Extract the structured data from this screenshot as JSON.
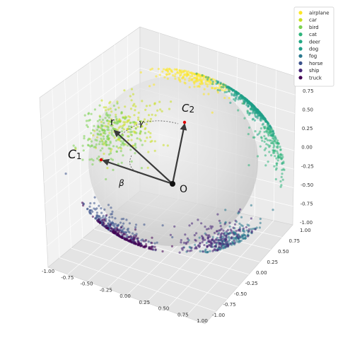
{
  "chart_data": {
    "type": "scatter",
    "projection": "3d",
    "grid": true,
    "legend_position": "top-right",
    "x_ticks": [
      "-1.00",
      "-0.75",
      "-0.50",
      "-0.25",
      "0.00",
      "0.25",
      "0.50",
      "0.75",
      "1.00"
    ],
    "y_ticks": [
      "1.00",
      "0.75",
      "0.50",
      "0.25",
      "0.00",
      "-0.25",
      "-0.50",
      "-0.75",
      "-1.00"
    ],
    "z_ticks": [
      "0.75",
      "0.50",
      "0.25",
      "0.00",
      "-0.25",
      "-0.50",
      "-0.75",
      "-1.00"
    ],
    "xlim": [
      -1,
      1
    ],
    "ylim": [
      -1,
      1
    ],
    "zlim": [
      -1,
      1
    ],
    "series": [
      {
        "name": "airplane",
        "color": "#fde725",
        "center": [
          -0.3,
          0.65,
          0.75
        ],
        "count": 200
      },
      {
        "name": "car",
        "color": "#c8e020",
        "center": [
          -0.7,
          0.3,
          -0.05
        ],
        "count": 160
      },
      {
        "name": "bird",
        "color": "#7ad151",
        "center": [
          -0.75,
          0.15,
          -0.15
        ],
        "count": 200
      },
      {
        "name": "cat",
        "color": "#2fb47c",
        "center": [
          0.85,
          0.6,
          0.45
        ],
        "count": 160
      },
      {
        "name": "deer",
        "color": "#22a884",
        "center": [
          0.2,
          0.5,
          0.45
        ],
        "count": 200
      },
      {
        "name": "dog",
        "color": "#1f9e89",
        "center": [
          0.2,
          0.45,
          0.4
        ],
        "count": 200
      },
      {
        "name": "fog",
        "color": "#2a788e",
        "center": [
          0.75,
          -0.1,
          -0.5
        ],
        "count": 200
      },
      {
        "name": "horse",
        "color": "#3b528b",
        "center": [
          -0.25,
          -0.4,
          -0.7
        ],
        "count": 240
      },
      {
        "name": "ship",
        "color": "#482878",
        "center": [
          0.8,
          -0.3,
          -0.5
        ],
        "count": 180
      },
      {
        "name": "truck",
        "color": "#440154",
        "center": [
          -0.1,
          -0.6,
          -0.95
        ],
        "count": 160
      }
    ]
  },
  "annotations": {
    "c1_main": "C",
    "c1_sub": "1",
    "c2_main": "C",
    "c2_sub": "2",
    "origin": "O",
    "r": "r",
    "gamma": "γ",
    "beta": "β"
  }
}
